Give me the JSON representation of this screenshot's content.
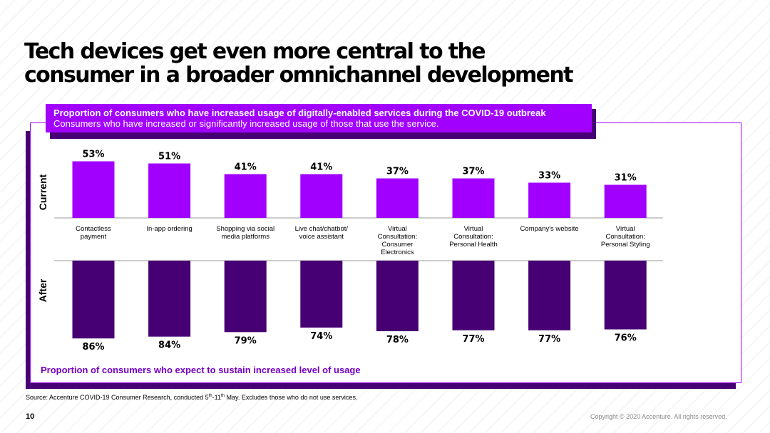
{
  "slide": {
    "title_line1": "Tech devices get even more central to the",
    "title_line2": "consumer in a broader omnichannel development",
    "banner_title": "Proportion of consumers who have increased usage of digitally-enabled services during the COVID-19 outbreak",
    "banner_subtitle": "Consumers who have increased or significantly increased usage of those that use the service.",
    "row_label_top": "Current",
    "row_label_bottom": "After",
    "bottom_caption": "Proportion of consumers who expect to sustain increased level of usage",
    "source_prefix": "Source: Accenture COVID-19 Consumer Research, conducted 5",
    "source_sup1": "th",
    "source_mid": "-11",
    "source_sup2": "th",
    "source_suffix": " May. Excludes those who do not use services.",
    "page_number": "10",
    "copyright": "Copyright © 2020 Accenture. All rights reserved."
  },
  "colors": {
    "current": "#a100ff",
    "after": "#460073",
    "axis": "#999999"
  },
  "chart_data": {
    "type": "bar",
    "title": "Proportion of consumers who have increased usage of digitally-enabled services during the COVID-19 outbreak",
    "ylim": [
      0,
      100
    ],
    "categories": [
      [
        "Contactless",
        "payment"
      ],
      [
        "In-app ordering"
      ],
      [
        "Shopping via social",
        "media platforms"
      ],
      [
        "Live chat/chatbot/",
        "voice assistant"
      ],
      [
        "Virtual",
        "Consultation:",
        "Consumer",
        "Electronics"
      ],
      [
        "Virtual",
        "Consultation:",
        "Personal Health"
      ],
      [
        "Company's website"
      ],
      [
        "Virtual",
        "Consultation:",
        "Personal Styling"
      ]
    ],
    "series": [
      {
        "name": "Current",
        "values": [
          53,
          51,
          41,
          41,
          37,
          37,
          33,
          31
        ],
        "labels": [
          "53%",
          "51%",
          "41%",
          "41%",
          "37%",
          "37%",
          "33%",
          "31%"
        ]
      },
      {
        "name": "After",
        "values": [
          86,
          84,
          79,
          74,
          78,
          77,
          77,
          76
        ],
        "labels": [
          "86%",
          "84%",
          "79%",
          "74%",
          "78%",
          "77%",
          "77%",
          "76%"
        ]
      }
    ]
  }
}
